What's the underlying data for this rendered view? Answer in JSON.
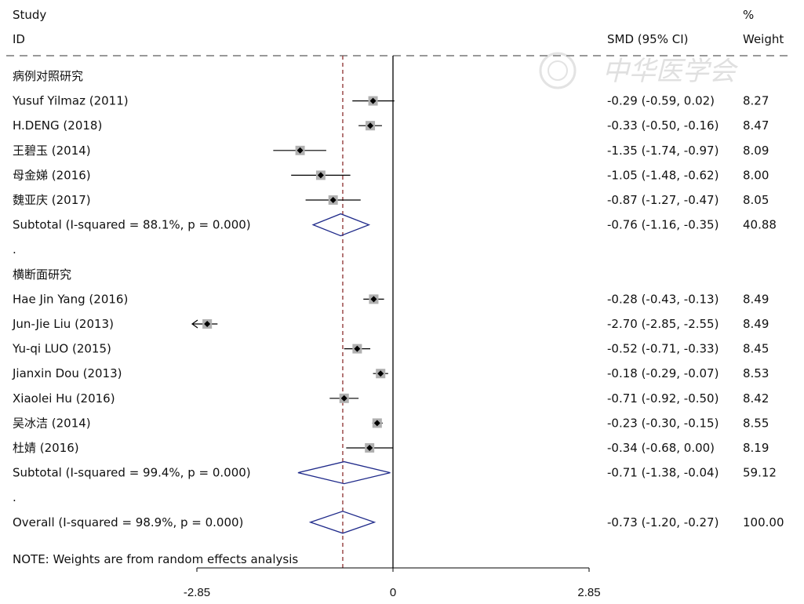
{
  "header": {
    "study": "Study",
    "id": "ID",
    "smd": "SMD (95% CI)",
    "pct": "%",
    "weight": "Weight"
  },
  "watermark": "中华医学会",
  "note": "NOTE: Weights are from random effects analysis",
  "chart_data": {
    "type": "forest",
    "xlim": [
      -2.85,
      2.85
    ],
    "x_ticks": [
      {
        "value": -2.85,
        "label": "-2.85"
      },
      {
        "value": 0,
        "label": "0"
      },
      {
        "value": 2.85,
        "label": "2.85"
      }
    ],
    "overall_reference": -0.73,
    "rows": [
      {
        "kind": "group",
        "label": "病例对照研究"
      },
      {
        "kind": "study",
        "label": "Yusuf Yilmaz  (2011)",
        "smd": -0.29,
        "lo": -0.59,
        "hi": 0.02,
        "ci_text": "-0.29 (-0.59, 0.02)",
        "weight": 8.27,
        "weight_text": "8.27"
      },
      {
        "kind": "study",
        "label": "H.DENG (2018)",
        "smd": -0.33,
        "lo": -0.5,
        "hi": -0.16,
        "ci_text": "-0.33 (-0.50, -0.16)",
        "weight": 8.47,
        "weight_text": "8.47"
      },
      {
        "kind": "study",
        "label": "王碧玉 (2014)",
        "smd": -1.35,
        "lo": -1.74,
        "hi": -0.97,
        "ci_text": "-1.35 (-1.74, -0.97)",
        "weight": 8.09,
        "weight_text": "8.09"
      },
      {
        "kind": "study",
        "label": "母金娣 (2016)",
        "smd": -1.05,
        "lo": -1.48,
        "hi": -0.62,
        "ci_text": "-1.05 (-1.48, -0.62)",
        "weight": 8.0,
        "weight_text": "8.00"
      },
      {
        "kind": "study",
        "label": "魏亚庆 (2017)",
        "smd": -0.87,
        "lo": -1.27,
        "hi": -0.47,
        "ci_text": "-0.87 (-1.27, -0.47)",
        "weight": 8.05,
        "weight_text": "8.05"
      },
      {
        "kind": "subtotal",
        "label": "Subtotal  (I-squared = 88.1%, p = 0.000)",
        "smd": -0.76,
        "lo": -1.16,
        "hi": -0.35,
        "ci_text": "-0.76 (-1.16, -0.35)",
        "weight": 40.88,
        "weight_text": "40.88"
      },
      {
        "kind": "spacer",
        "label": "."
      },
      {
        "kind": "group",
        "label": "横断面研究"
      },
      {
        "kind": "study",
        "label": "Hae Jin Yang  (2016)",
        "smd": -0.28,
        "lo": -0.43,
        "hi": -0.13,
        "ci_text": "-0.28 (-0.43, -0.13)",
        "weight": 8.49,
        "weight_text": "8.49"
      },
      {
        "kind": "study",
        "label": "Jun-Jie Liu  (2013)",
        "smd": -2.7,
        "lo": -2.85,
        "hi": -2.55,
        "ci_text": "-2.70 (-2.85, -2.55)",
        "weight": 8.49,
        "weight_text": "8.49",
        "clipped_left": true
      },
      {
        "kind": "study",
        "label": "Yu-qi LUO  (2015)",
        "smd": -0.52,
        "lo": -0.71,
        "hi": -0.33,
        "ci_text": "-0.52 (-0.71, -0.33)",
        "weight": 8.45,
        "weight_text": "8.45"
      },
      {
        "kind": "study",
        "label": "Jianxin Dou  (2013)",
        "smd": -0.18,
        "lo": -0.29,
        "hi": -0.07,
        "ci_text": "-0.18 (-0.29, -0.07)",
        "weight": 8.53,
        "weight_text": "8.53"
      },
      {
        "kind": "study",
        "label": "Xiaolei Hu  (2016)",
        "smd": -0.71,
        "lo": -0.92,
        "hi": -0.5,
        "ci_text": "-0.71 (-0.92, -0.50)",
        "weight": 8.42,
        "weight_text": "8.42"
      },
      {
        "kind": "study",
        "label": "吴冰洁 (2014)",
        "smd": -0.23,
        "lo": -0.3,
        "hi": -0.15,
        "ci_text": "-0.23 (-0.30, -0.15)",
        "weight": 8.55,
        "weight_text": "8.55"
      },
      {
        "kind": "study",
        "label": "杜婧 (2016)",
        "smd": -0.34,
        "lo": -0.68,
        "hi": 0.0,
        "ci_text": "-0.34 (-0.68, 0.00)",
        "weight": 8.19,
        "weight_text": "8.19"
      },
      {
        "kind": "subtotal",
        "label": "Subtotal  (I-squared = 99.4%, p = 0.000)",
        "smd": -0.71,
        "lo": -1.38,
        "hi": -0.04,
        "ci_text": "-0.71 (-1.38, -0.04)",
        "weight": 59.12,
        "weight_text": "59.12"
      },
      {
        "kind": "spacer",
        "label": "."
      },
      {
        "kind": "overall",
        "label": "Overall  (I-squared = 98.9%, p = 0.000)",
        "smd": -0.73,
        "lo": -1.2,
        "hi": -0.27,
        "ci_text": "-0.73 (-1.20, -0.27)",
        "weight": 100.0,
        "weight_text": "100.00"
      }
    ]
  }
}
